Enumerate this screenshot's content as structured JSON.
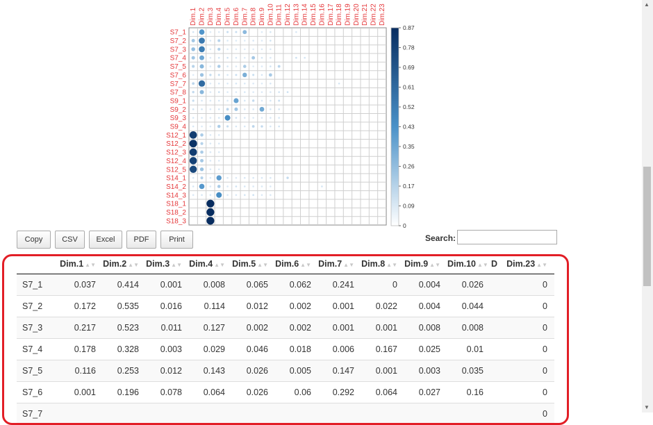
{
  "colors": {
    "row_label": "#e5383b",
    "col_label": "#e5383b",
    "dot_dark": "#0c2d5e",
    "dot_light": "#d6e6f4",
    "highlight": "#e21e26"
  },
  "chart_data": {
    "type": "heatmap",
    "columns": [
      "Dim.1",
      "Dim.2",
      "Dim.3",
      "Dim.4",
      "Dim.5",
      "Dim.6",
      "Dim.7",
      "Dim.8",
      "Dim.9",
      "Dim.10",
      "Dim.11",
      "Dim.12",
      "Dim.13",
      "Dim.14",
      "Dim.15",
      "Dim.16",
      "Dim.17",
      "Dim.18",
      "Dim.19",
      "Dim.20",
      "Dim.21",
      "Dim.22",
      "Dim.23"
    ],
    "rows": [
      "S7_1",
      "S7_2",
      "S7_3",
      "S7_4",
      "S7_5",
      "S7_6",
      "S7_7",
      "S7_8",
      "S9_1",
      "S9_2",
      "S9_3",
      "S9_4",
      "S12_1",
      "S12_2",
      "S12_3",
      "S12_4",
      "S12_5",
      "S14_1",
      "S14_2",
      "S14_3",
      "S18_1",
      "S18_2",
      "S18_3"
    ],
    "values": [
      [
        0.037,
        0.414,
        0.001,
        0.008,
        0.065,
        0.062,
        0.241,
        0,
        0.004,
        0.026,
        0,
        0,
        0.02,
        0,
        0,
        0,
        0,
        0,
        0,
        0,
        0,
        0,
        0
      ],
      [
        0.172,
        0.535,
        0.016,
        0.114,
        0.012,
        0.002,
        0.001,
        0.022,
        0.004,
        0.044,
        0,
        0,
        0,
        0,
        0,
        0,
        0,
        0,
        0,
        0,
        0,
        0,
        0
      ],
      [
        0.217,
        0.523,
        0.011,
        0.127,
        0.002,
        0.002,
        0.001,
        0.001,
        0.008,
        0.008,
        0,
        0,
        0,
        0,
        0,
        0,
        0,
        0,
        0,
        0,
        0,
        0,
        0
      ],
      [
        0.178,
        0.328,
        0.003,
        0.029,
        0.046,
        0.018,
        0.006,
        0.167,
        0.025,
        0.01,
        0,
        0,
        0.05,
        0.03,
        0,
        0,
        0,
        0,
        0,
        0,
        0,
        0,
        0
      ],
      [
        0.116,
        0.253,
        0.012,
        0.143,
        0.026,
        0.005,
        0.147,
        0.001,
        0.003,
        0.035,
        0.1,
        0,
        0,
        0,
        0,
        0,
        0,
        0,
        0,
        0,
        0,
        0,
        0
      ],
      [
        0.001,
        0.196,
        0.078,
        0.064,
        0.026,
        0.06,
        0.292,
        0.064,
        0.027,
        0.16,
        0,
        0,
        0,
        0,
        0,
        0,
        0,
        0,
        0,
        0,
        0,
        0,
        0
      ],
      [
        0.1,
        0.6,
        0.001,
        0.02,
        0.01,
        0.02,
        0.01,
        0.01,
        0.001,
        0.02,
        0,
        0,
        0,
        0,
        0,
        0,
        0,
        0.03,
        0,
        0,
        0,
        0,
        0
      ],
      [
        0.08,
        0.25,
        0.01,
        0.05,
        0.01,
        0.01,
        0.02,
        0.01,
        0.01,
        0.01,
        0.04,
        0.05,
        0,
        0,
        0,
        0,
        0,
        0,
        0,
        0,
        0,
        0,
        0
      ],
      [
        0.07,
        0.02,
        0.01,
        0.02,
        0.01,
        0.35,
        0.02,
        0.08,
        0.01,
        0.02,
        0.06,
        0,
        0,
        0,
        0,
        0,
        0,
        0,
        0,
        0,
        0,
        0,
        0
      ],
      [
        0.05,
        0.03,
        0.01,
        0.03,
        0.1,
        0.18,
        0.02,
        0.02,
        0.32,
        0.02,
        0.03,
        0,
        0,
        0,
        0,
        0,
        0,
        0,
        0,
        0,
        0,
        0,
        0
      ],
      [
        0.02,
        0.02,
        0.01,
        0.03,
        0.45,
        0.05,
        0.02,
        0.01,
        0.01,
        0.02,
        0.02,
        0,
        0,
        0,
        0,
        0,
        0,
        0,
        0,
        0,
        0,
        0,
        0
      ],
      [
        0.02,
        0.01,
        0.01,
        0.14,
        0.07,
        0.02,
        0.02,
        0.1,
        0.08,
        0.02,
        0.04,
        0,
        0,
        0,
        0,
        0,
        0,
        0,
        0,
        0,
        0,
        0,
        0
      ],
      [
        0.8,
        0.15,
        0.01,
        0.01,
        0,
        0,
        0,
        0,
        0,
        0,
        0,
        0,
        0,
        0,
        0,
        0,
        0,
        0,
        0,
        0,
        0,
        0,
        0
      ],
      [
        0.85,
        0.12,
        0.01,
        0.01,
        0,
        0,
        0,
        0,
        0,
        0,
        0,
        0,
        0,
        0,
        0,
        0,
        0,
        0,
        0,
        0,
        0,
        0,
        0
      ],
      [
        0.8,
        0.15,
        0.01,
        0.01,
        0,
        0,
        0,
        0,
        0,
        0,
        0,
        0,
        0,
        0,
        0,
        0,
        0,
        0,
        0,
        0,
        0,
        0,
        0
      ],
      [
        0.78,
        0.17,
        0.01,
        0.01,
        0,
        0,
        0,
        0,
        0,
        0,
        0,
        0,
        0,
        0,
        0,
        0,
        0,
        0,
        0,
        0,
        0,
        0,
        0
      ],
      [
        0.75,
        0.2,
        0.01,
        0.01,
        0,
        0,
        0,
        0,
        0,
        0,
        0,
        0,
        0,
        0,
        0,
        0,
        0,
        0,
        0,
        0,
        0,
        0,
        0
      ],
      [
        0.02,
        0.12,
        0.01,
        0.38,
        0.01,
        0.01,
        0.02,
        0.02,
        0.02,
        0.02,
        0,
        0.08,
        0,
        0,
        0,
        0,
        0,
        0,
        0,
        0,
        0,
        0,
        0
      ],
      [
        0.02,
        0.4,
        0.01,
        0.15,
        0.01,
        0.04,
        0.02,
        0.01,
        0.01,
        0.01,
        0,
        0,
        0,
        0,
        0,
        0.03,
        0,
        0,
        0,
        0,
        0,
        0,
        0
      ],
      [
        0.01,
        0.02,
        0.02,
        0.45,
        0.01,
        0.01,
        0.03,
        0.05,
        0.01,
        0.01,
        0,
        0,
        0,
        0,
        0,
        0,
        0,
        0,
        0,
        0,
        0,
        0,
        0
      ],
      [
        0,
        0,
        0.87,
        0,
        0,
        0,
        0,
        0,
        0,
        0,
        0,
        0,
        0,
        0,
        0,
        0,
        0,
        0,
        0,
        0,
        0,
        0,
        0
      ],
      [
        0,
        0,
        0.87,
        0,
        0,
        0,
        0,
        0,
        0,
        0,
        0,
        0,
        0,
        0,
        0,
        0,
        0,
        0,
        0,
        0,
        0,
        0,
        0
      ],
      [
        0,
        0,
        0.87,
        0,
        0,
        0,
        0,
        0,
        0,
        0,
        0,
        0,
        0,
        0,
        0,
        0,
        0,
        0,
        0,
        0,
        0,
        0,
        0
      ]
    ],
    "color_range": [
      0,
      0.87
    ],
    "legend_ticks": [
      "0.87",
      "0.78",
      "0.69",
      "0.61",
      "0.52",
      "0.43",
      "0.35",
      "0.26",
      "0.17",
      "0.09",
      "0"
    ]
  },
  "toolbar": {
    "buttons": [
      "Copy",
      "CSV",
      "Excel",
      "PDF",
      "Print"
    ]
  },
  "search": {
    "label": "Search:",
    "value": ""
  },
  "table": {
    "headers": [
      "Dim.1",
      "Dim.2",
      "Dim.3",
      "Dim.4",
      "Dim.5",
      "Dim.6",
      "Dim.7",
      "Dim.8",
      "Dim.9",
      "Dim.10",
      "D",
      "Dim.23"
    ],
    "rows": [
      {
        "name": "S7_1",
        "cells": [
          "0.037",
          "0.414",
          "0.001",
          "0.008",
          "0.065",
          "0.062",
          "0.241",
          "0",
          "0.004",
          "0.026",
          "",
          "0"
        ]
      },
      {
        "name": "S7_2",
        "cells": [
          "0.172",
          "0.535",
          "0.016",
          "0.114",
          "0.012",
          "0.002",
          "0.001",
          "0.022",
          "0.004",
          "0.044",
          "",
          "0"
        ]
      },
      {
        "name": "S7_3",
        "cells": [
          "0.217",
          "0.523",
          "0.011",
          "0.127",
          "0.002",
          "0.002",
          "0.001",
          "0.001",
          "0.008",
          "0.008",
          "",
          "0"
        ]
      },
      {
        "name": "S7_4",
        "cells": [
          "0.178",
          "0.328",
          "0.003",
          "0.029",
          "0.046",
          "0.018",
          "0.006",
          "0.167",
          "0.025",
          "0.01",
          "",
          "0"
        ]
      },
      {
        "name": "S7_5",
        "cells": [
          "0.116",
          "0.253",
          "0.012",
          "0.143",
          "0.026",
          "0.005",
          "0.147",
          "0.001",
          "0.003",
          "0.035",
          "",
          "0"
        ]
      },
      {
        "name": "S7_6",
        "cells": [
          "0.001",
          "0.196",
          "0.078",
          "0.064",
          "0.026",
          "0.06",
          "0.292",
          "0.064",
          "0.027",
          "0.16",
          "",
          "0"
        ]
      },
      {
        "name": "S7_7",
        "cells": [
          "",
          "",
          "",
          "",
          "",
          "",
          "",
          "",
          "",
          "",
          "",
          "0"
        ]
      }
    ]
  }
}
